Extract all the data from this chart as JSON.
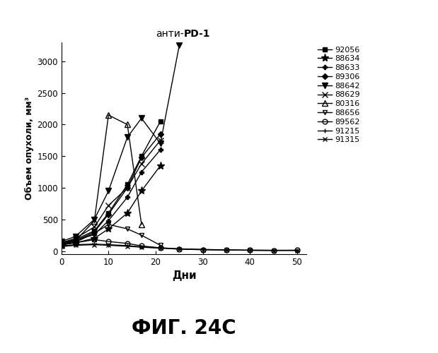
{
  "title_normal": "анти-",
  "title_bold": "PD-1",
  "xlabel": "Дни",
  "ylabel": "Объем опухоли, мм³",
  "xlim": [
    0,
    52
  ],
  "ylim": [
    -50,
    3300
  ],
  "xticks": [
    0,
    10,
    20,
    30,
    40,
    50
  ],
  "yticks": [
    0,
    500,
    1000,
    1500,
    2000,
    2500,
    3000
  ],
  "fig_title": "ФИГ. 24С",
  "series": [
    {
      "label": "92056",
      "marker": "s",
      "ms": 5,
      "x": [
        0,
        3,
        7,
        10,
        14,
        17,
        21
      ],
      "y": [
        130,
        180,
        320,
        600,
        1050,
        1500,
        2050
      ]
    },
    {
      "label": "88634",
      "marker": "*",
      "ms": 8,
      "x": [
        0,
        3,
        7,
        10,
        14,
        17,
        21
      ],
      "y": [
        100,
        130,
        200,
        350,
        600,
        950,
        1350
      ]
    },
    {
      "label": "88633",
      "marker": "P",
      "ms": 5,
      "x": [
        0,
        3,
        7,
        10,
        14,
        17,
        21
      ],
      "y": [
        120,
        170,
        260,
        480,
        850,
        1250,
        1600
      ]
    },
    {
      "label": "89306",
      "marker": "D",
      "ms": 4,
      "x": [
        0,
        3,
        7,
        10,
        14,
        17,
        21
      ],
      "y": [
        110,
        160,
        300,
        580,
        1000,
        1480,
        1850
      ]
    },
    {
      "label": "88642",
      "marker": "v",
      "ms": 6,
      "x": [
        0,
        3,
        7,
        10,
        14,
        17,
        21,
        25
      ],
      "y": [
        150,
        230,
        500,
        950,
        1800,
        2100,
        1700,
        3250
      ]
    },
    {
      "label": "88629",
      "marker": "x",
      "ms": 6,
      "x": [
        0,
        3,
        7,
        10,
        14,
        17,
        21
      ],
      "y": [
        130,
        200,
        380,
        720,
        1000,
        1380,
        1750
      ]
    },
    {
      "label": "80316",
      "marker": "^",
      "ms": 6,
      "mfc": "none",
      "x": [
        0,
        3,
        7,
        10,
        14,
        17
      ],
      "y": [
        100,
        160,
        480,
        2150,
        2000,
        420
      ]
    },
    {
      "label": "88656",
      "marker": "v",
      "ms": 5,
      "mfc": "none",
      "x": [
        0,
        3,
        7,
        10,
        14,
        17,
        21
      ],
      "y": [
        90,
        140,
        280,
        420,
        350,
        250,
        90
      ]
    },
    {
      "label": "89562",
      "marker": "o",
      "ms": 5,
      "mfc": "none",
      "x": [
        0,
        3,
        7,
        10,
        14,
        17,
        21,
        25,
        30,
        35,
        40,
        45,
        50
      ],
      "y": [
        100,
        130,
        180,
        150,
        120,
        80,
        50,
        30,
        20,
        15,
        12,
        10,
        12
      ]
    },
    {
      "label": "91215",
      "marker": "+",
      "ms": 5,
      "x": [
        0,
        3,
        7,
        10,
        14,
        17,
        21,
        25,
        30,
        35,
        40,
        45,
        50
      ],
      "y": [
        80,
        100,
        110,
        100,
        85,
        65,
        50,
        35,
        25,
        18,
        12,
        10,
        10
      ]
    },
    {
      "label": "91315",
      "marker": "x",
      "ms": 5,
      "x": [
        0,
        3,
        7,
        10,
        14,
        17,
        21,
        25,
        30,
        35,
        40,
        45,
        50
      ],
      "y": [
        70,
        90,
        100,
        90,
        75,
        60,
        45,
        30,
        22,
        16,
        12,
        10,
        10
      ]
    }
  ]
}
